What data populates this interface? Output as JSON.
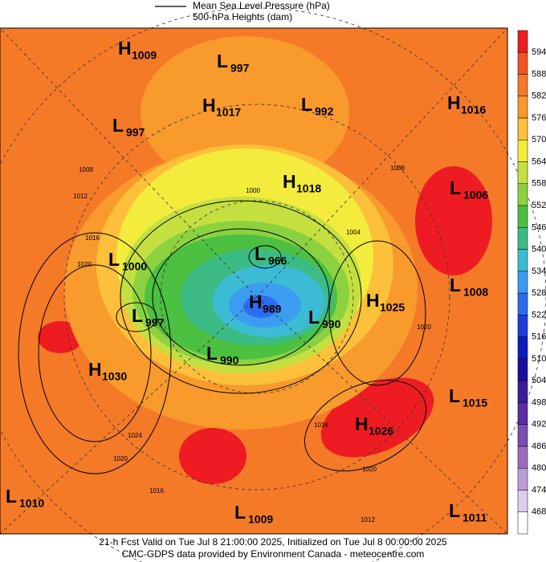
{
  "legend": {
    "lines": [
      "Mean Sea Level Pressure (hPa)",
      "500-hPa Heights (dam)"
    ]
  },
  "colorbar": {
    "labels": [
      594,
      588,
      582,
      576,
      570,
      564,
      558,
      552,
      546,
      540,
      534,
      528,
      522,
      516,
      510,
      504,
      498,
      492,
      486,
      480,
      474,
      468
    ],
    "colors": [
      "#ee1c22",
      "#f05424",
      "#f47a28",
      "#f89a2c",
      "#fcc03a",
      "#f4ec3c",
      "#c4e040",
      "#8cd240",
      "#4cc040",
      "#3cbc84",
      "#3cbcd4",
      "#3c9cf0",
      "#2c6cf0",
      "#1c3ce0",
      "#0c1cc0",
      "#1c0ca0",
      "#3c1c98",
      "#5c2ca0",
      "#7c4cb0",
      "#9c6cc0",
      "#bc9cd8",
      "#dcd0ee",
      "#ffffff"
    ]
  },
  "centers": [
    {
      "type": "H",
      "value": 1009
    },
    {
      "type": "L",
      "value": 997
    },
    {
      "type": "H",
      "value": 1017
    },
    {
      "type": "L",
      "value": 992
    },
    {
      "type": "H",
      "value": 1016
    },
    {
      "type": "L",
      "value": 997
    },
    {
      "type": "H",
      "value": 1018
    },
    {
      "type": "L",
      "value": 1006
    },
    {
      "type": "L",
      "value": 1000
    },
    {
      "type": "L",
      "value": 966
    },
    {
      "type": "L",
      "value": 1008
    },
    {
      "type": "H",
      "value": 989
    },
    {
      "type": "H",
      "value": 1025
    },
    {
      "type": "L",
      "value": 997
    },
    {
      "type": "L",
      "value": 990
    },
    {
      "type": "L",
      "value": 990
    },
    {
      "type": "H",
      "value": 1030
    },
    {
      "type": "L",
      "value": 1015
    },
    {
      "type": "H",
      "value": 1026
    },
    {
      "type": "L",
      "value": 1010
    },
    {
      "type": "L",
      "value": 1009
    },
    {
      "type": "L",
      "value": 1011
    }
  ],
  "contour_labels": [
    1008,
    1012,
    1016,
    1020,
    1024,
    1020,
    1016,
    1012,
    1020,
    1016,
    1020,
    1008,
    1004,
    1000
  ],
  "footer": {
    "lines": [
      "21-h Fcst Valid on Tue Jul  8 21:00:00 2025, Initialized on Tue Jul  8 00:00:00 2025",
      "CMC-GDPS data provided by Environment Canada - meteocentre.com"
    ]
  }
}
